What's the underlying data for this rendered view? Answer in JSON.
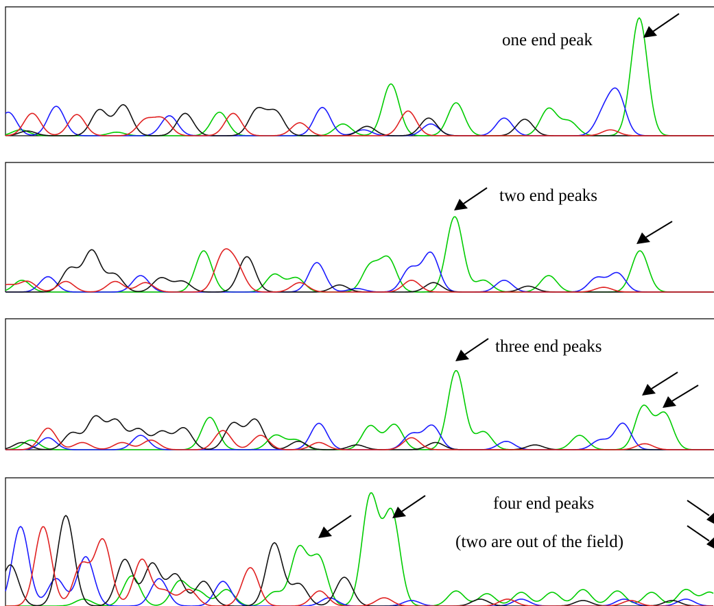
{
  "chart_data": [
    {
      "type": "line",
      "annotations": [
        "one end peak"
      ],
      "colors": {
        "A": "#00cc00",
        "C": "#1a1aff",
        "G": "#111111",
        "T": "#e02020"
      },
      "series": [
        {
          "color": "#00cc00",
          "peaks": [
            [
              30,
              0.05
            ],
            [
              170,
              0.03
            ],
            [
              320,
              0.2
            ],
            [
              500,
              0.1
            ],
            [
              570,
              0.44
            ],
            [
              665,
              0.28
            ],
            [
              800,
              0.23
            ],
            [
              830,
              0.12
            ],
            [
              932,
              1.0
            ]
          ]
        },
        {
          "color": "#1a1aff",
          "peaks": [
            [
              12,
              0.2
            ],
            [
              82,
              0.25
            ],
            [
              247,
              0.17
            ],
            [
              470,
              0.24
            ],
            [
              530,
              0.05
            ],
            [
              628,
              0.1
            ],
            [
              735,
              0.15
            ],
            [
              880,
              0.18
            ],
            [
              900,
              0.35
            ]
          ]
        },
        {
          "color": "#111111",
          "peaks": [
            [
              40,
              0.04
            ],
            [
              145,
              0.22
            ],
            [
              180,
              0.26
            ],
            [
              270,
              0.19
            ],
            [
              375,
              0.22
            ],
            [
              402,
              0.2
            ],
            [
              535,
              0.08
            ],
            [
              625,
              0.15
            ],
            [
              765,
              0.14
            ]
          ]
        },
        {
          "color": "#e02020",
          "peaks": [
            [
              47,
              0.19
            ],
            [
              112,
              0.18
            ],
            [
              212,
              0.13
            ],
            [
              237,
              0.14
            ],
            [
              340,
              0.19
            ],
            [
              437,
              0.11
            ],
            [
              595,
              0.21
            ],
            [
              890,
              0.05
            ]
          ]
        }
      ]
    },
    {
      "type": "line",
      "annotations": [
        "two end peaks"
      ],
      "series": [
        {
          "color": "#00cc00",
          "peaks": [
            [
              32,
              0.1
            ],
            [
              297,
              0.35
            ],
            [
              400,
              0.15
            ],
            [
              432,
              0.12
            ],
            [
              540,
              0.22
            ],
            [
              566,
              0.28
            ],
            [
              663,
              0.64
            ],
            [
              705,
              0.1
            ],
            [
              800,
              0.14
            ],
            [
              933,
              0.35
            ]
          ]
        },
        {
          "color": "#1a1aff",
          "peaks": [
            [
              70,
              0.13
            ],
            [
              205,
              0.14
            ],
            [
              462,
              0.25
            ],
            [
              520,
              0.03
            ],
            [
              598,
              0.2
            ],
            [
              628,
              0.33
            ],
            [
              735,
              0.1
            ],
            [
              870,
              0.12
            ],
            [
              900,
              0.16
            ]
          ]
        },
        {
          "color": "#111111",
          "peaks": [
            [
              102,
              0.2
            ],
            [
              134,
              0.35
            ],
            [
              167,
              0.15
            ],
            [
              235,
              0.12
            ],
            [
              266,
              0.09
            ],
            [
              360,
              0.3
            ],
            [
              495,
              0.06
            ],
            [
              632,
              0.08
            ],
            [
              770,
              0.05
            ]
          ]
        },
        {
          "color": "#e02020",
          "peaks": [
            [
              10,
              0.06
            ],
            [
              40,
              0.09
            ],
            [
              96,
              0.09
            ],
            [
              168,
              0.09
            ],
            [
              212,
              0.08
            ],
            [
              325,
              0.3
            ],
            [
              345,
              0.2
            ],
            [
              437,
              0.08
            ],
            [
              600,
              0.1
            ],
            [
              880,
              0.04
            ]
          ]
        }
      ]
    },
    {
      "type": "line",
      "annotations": [
        "three end peaks"
      ],
      "series": [
        {
          "color": "#00cc00",
          "peaks": [
            [
              45,
              0.08
            ],
            [
              306,
              0.27
            ],
            [
              402,
              0.12
            ],
            [
              432,
              0.08
            ],
            [
              540,
              0.2
            ],
            [
              575,
              0.21
            ],
            [
              665,
              0.66
            ],
            [
              705,
              0.15
            ],
            [
              845,
              0.12
            ],
            [
              938,
              0.36
            ],
            [
              969,
              0.3
            ]
          ]
        },
        {
          "color": "#1a1aff",
          "peaks": [
            [
              70,
              0.1
            ],
            [
              205,
              0.12
            ],
            [
              465,
              0.22
            ],
            [
              600,
              0.13
            ],
            [
              630,
              0.2
            ],
            [
              738,
              0.07
            ],
            [
              875,
              0.08
            ],
            [
              908,
              0.22
            ]
          ]
        },
        {
          "color": "#111111",
          "peaks": [
            [
              32,
              0.06
            ],
            [
              105,
              0.14
            ],
            [
              139,
              0.27
            ],
            [
              169,
              0.24
            ],
            [
              202,
              0.17
            ],
            [
              236,
              0.15
            ],
            [
              268,
              0.18
            ],
            [
              340,
              0.22
            ],
            [
              372,
              0.25
            ],
            [
              435,
              0.07
            ],
            [
              520,
              0.04
            ],
            [
              635,
              0.06
            ],
            [
              780,
              0.04
            ]
          ]
        },
        {
          "color": "#e02020",
          "peaks": [
            [
              70,
              0.18
            ],
            [
              120,
              0.06
            ],
            [
              178,
              0.06
            ],
            [
              220,
              0.08
            ],
            [
              325,
              0.16
            ],
            [
              380,
              0.12
            ],
            [
              465,
              0.06
            ],
            [
              600,
              0.1
            ],
            [
              940,
              0.05
            ]
          ]
        }
      ]
    },
    {
      "type": "line",
      "annotations": [
        "four end peaks",
        "(two are out of the field)"
      ],
      "series": [
        {
          "color": "#00cc00",
          "peaks": [
            [
              122,
              0.05
            ],
            [
              192,
              0.22
            ],
            [
              262,
              0.18
            ],
            [
              290,
              0.1
            ],
            [
              330,
              0.12
            ],
            [
              400,
              0.1
            ],
            [
              436,
              0.42
            ],
            [
              465,
              0.35
            ],
            [
              540,
              0.8
            ],
            [
              571,
              0.68
            ],
            [
              665,
              0.11
            ],
            [
              710,
              0.09
            ],
            [
              760,
              0.1
            ],
            [
              805,
              0.1
            ],
            [
              850,
              0.12
            ],
            [
              900,
              0.11
            ],
            [
              950,
              0.1
            ],
            [
              1000,
              0.12
            ],
            [
              1035,
              0.1
            ]
          ]
        },
        {
          "color": "#1a1aff",
          "peaks": [
            [
              30,
              0.58
            ],
            [
              82,
              0.2
            ],
            [
              125,
              0.36
            ],
            [
              232,
              0.2
            ],
            [
              325,
              0.18
            ],
            [
              480,
              0.06
            ],
            [
              600,
              0.04
            ],
            [
              760,
              0.05
            ],
            [
              910,
              0.05
            ],
            [
              1000,
              0.05
            ]
          ]
        },
        {
          "color": "#111111",
          "peaks": [
            [
              15,
              0.3
            ],
            [
              96,
              0.66
            ],
            [
              182,
              0.34
            ],
            [
              222,
              0.31
            ],
            [
              256,
              0.23
            ],
            [
              297,
              0.18
            ],
            [
              400,
              0.46
            ],
            [
              436,
              0.16
            ],
            [
              502,
              0.21
            ],
            [
              700,
              0.05
            ],
            [
              850,
              0.04
            ],
            [
              980,
              0.04
            ]
          ]
        },
        {
          "color": "#e02020",
          "peaks": [
            [
              63,
              0.58
            ],
            [
              119,
              0.3
            ],
            [
              150,
              0.48
            ],
            [
              207,
              0.34
            ],
            [
              240,
              0.11
            ],
            [
              275,
              0.12
            ],
            [
              365,
              0.28
            ],
            [
              466,
              0.11
            ],
            [
              560,
              0.06
            ],
            [
              740,
              0.05
            ],
            [
              920,
              0.04
            ]
          ]
        }
      ]
    }
  ]
}
